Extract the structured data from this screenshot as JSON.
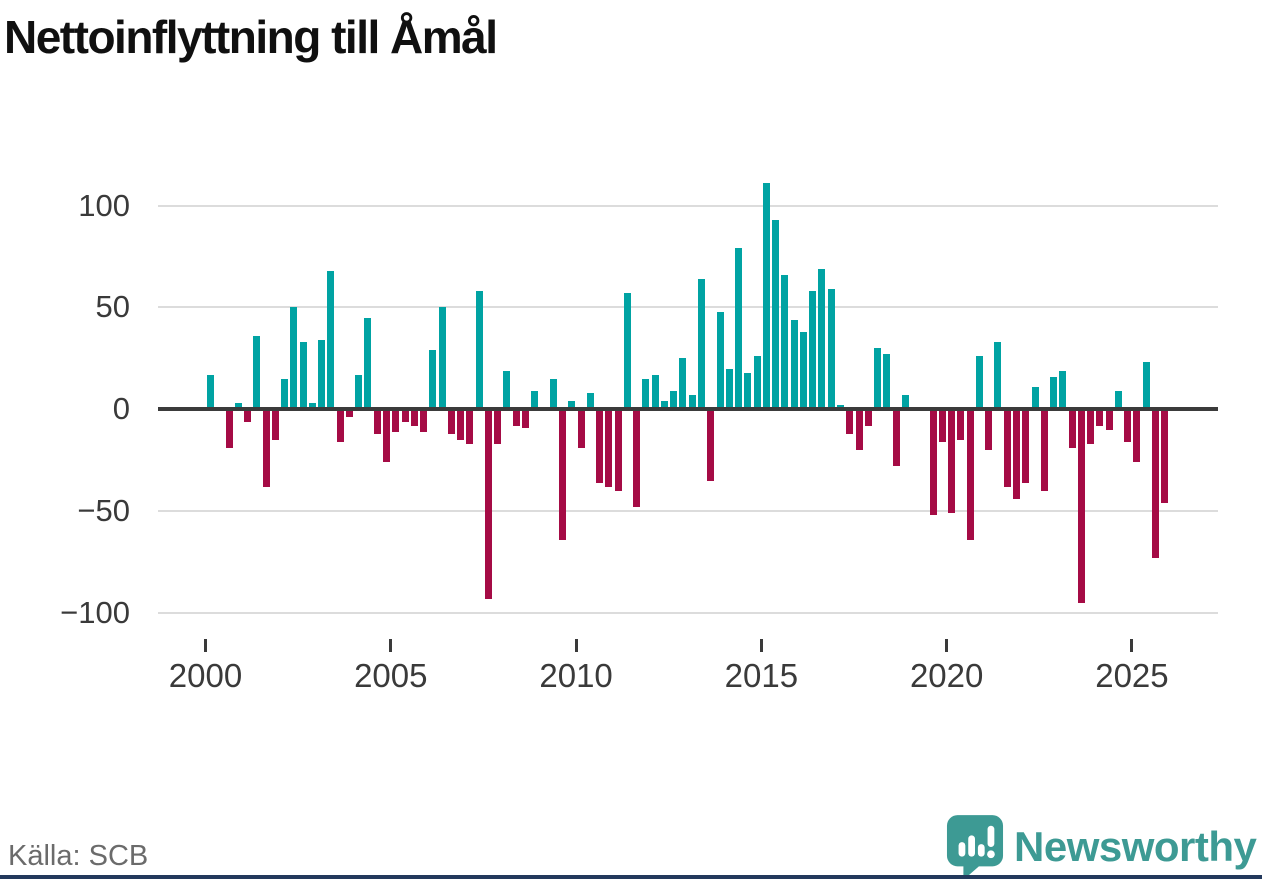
{
  "title": "Nettoinflyttning till Åmål",
  "source": "Källa: SCB",
  "brand": {
    "name": "Newsworthy",
    "icon": "newsworthy-speech-bubble-chart-icon",
    "color": "#3d9a94"
  },
  "colors": {
    "positive": "#00a3a3",
    "negative": "#a50b45",
    "zero_line": "#3b3b3b",
    "gridline": "#dcdcdc",
    "axis_text": "#3a3a3a",
    "title_text": "#101010",
    "source_text": "#6b6b6b",
    "footer_accent": "#23395c"
  },
  "chart_data": {
    "type": "bar",
    "title": "Nettoinflyttning till Åmål",
    "xlabel": "",
    "ylabel": "",
    "x_unit": "quarter",
    "ylim": [
      -100,
      112
    ],
    "grid": "horizontal",
    "yticks": {
      "values": [
        100,
        50,
        0,
        -50,
        -100
      ],
      "labels": [
        "100",
        "50",
        "0",
        "−50",
        "−100"
      ]
    },
    "xticks": {
      "values": [
        2000,
        2005,
        2010,
        2015,
        2020,
        2025
      ],
      "labels": [
        "2000",
        "2005",
        "2010",
        "2015",
        "2020",
        "2025"
      ]
    },
    "x": [
      "2000 Q1",
      "2000 Q2",
      "2000 Q3",
      "2000 Q4",
      "2001 Q1",
      "2001 Q2",
      "2001 Q3",
      "2001 Q4",
      "2002 Q1",
      "2002 Q2",
      "2002 Q3",
      "2002 Q4",
      "2003 Q1",
      "2003 Q2",
      "2003 Q3",
      "2003 Q4",
      "2004 Q1",
      "2004 Q2",
      "2004 Q3",
      "2004 Q4",
      "2005 Q1",
      "2005 Q2",
      "2005 Q3",
      "2005 Q4",
      "2006 Q1",
      "2006 Q2",
      "2006 Q3",
      "2006 Q4",
      "2007 Q1",
      "2007 Q2",
      "2007 Q3",
      "2007 Q4",
      "2008 Q1",
      "2008 Q2",
      "2008 Q3",
      "2008 Q4",
      "2009 Q1",
      "2009 Q2",
      "2009 Q3",
      "2009 Q4",
      "2010 Q1",
      "2010 Q2",
      "2010 Q3",
      "2010 Q4",
      "2011 Q1",
      "2011 Q2",
      "2011 Q3",
      "2011 Q4",
      "2012 Q1",
      "2012 Q2",
      "2012 Q3",
      "2012 Q4",
      "2013 Q1",
      "2013 Q2",
      "2013 Q3",
      "2013 Q4",
      "2014 Q1",
      "2014 Q2",
      "2014 Q3",
      "2014 Q4",
      "2015 Q1",
      "2015 Q2",
      "2015 Q3",
      "2015 Q4",
      "2016 Q1",
      "2016 Q2",
      "2016 Q3",
      "2016 Q4",
      "2017 Q1",
      "2017 Q2",
      "2017 Q3",
      "2017 Q4",
      "2018 Q1",
      "2018 Q2",
      "2018 Q3",
      "2018 Q4",
      "2019 Q1",
      "2019 Q2",
      "2019 Q3",
      "2019 Q4",
      "2020 Q1",
      "2020 Q2",
      "2020 Q3",
      "2020 Q4",
      "2021 Q1",
      "2021 Q2",
      "2021 Q3",
      "2021 Q4",
      "2022 Q1",
      "2022 Q2",
      "2022 Q3",
      "2022 Q4",
      "2023 Q1",
      "2023 Q2",
      "2023 Q3",
      "2023 Q4",
      "2024 Q1",
      "2024 Q2",
      "2024 Q3",
      "2024 Q4",
      "2025 Q1",
      "2025 Q2",
      "2025 Q3",
      "2025 Q4"
    ],
    "values": [
      17,
      0,
      -19,
      3,
      -6,
      36,
      -38,
      -15,
      15,
      50,
      33,
      3,
      34,
      68,
      -16,
      -4,
      17,
      45,
      -12,
      -26,
      -11,
      -6,
      -8,
      -11,
      29,
      50,
      -12,
      -15,
      -17,
      58,
      -93,
      -17,
      19,
      -8,
      -9,
      9,
      0,
      15,
      -64,
      4,
      -19,
      8,
      -36,
      -38,
      -40,
      57,
      -48,
      15,
      17,
      4,
      9,
      25,
      7,
      64,
      -35,
      48,
      20,
      79,
      18,
      26,
      111,
      93,
      66,
      44,
      38,
      58,
      69,
      59,
      2,
      -12,
      -20,
      -8,
      30,
      27,
      -28,
      7,
      0,
      0,
      -52,
      -16,
      -51,
      -15,
      -64,
      26,
      -20,
      33,
      -38,
      -44,
      -36,
      11,
      -40,
      16,
      19,
      -19,
      -95,
      -17,
      -8,
      -10,
      9,
      -16,
      -26,
      23,
      -73,
      -46
    ]
  }
}
